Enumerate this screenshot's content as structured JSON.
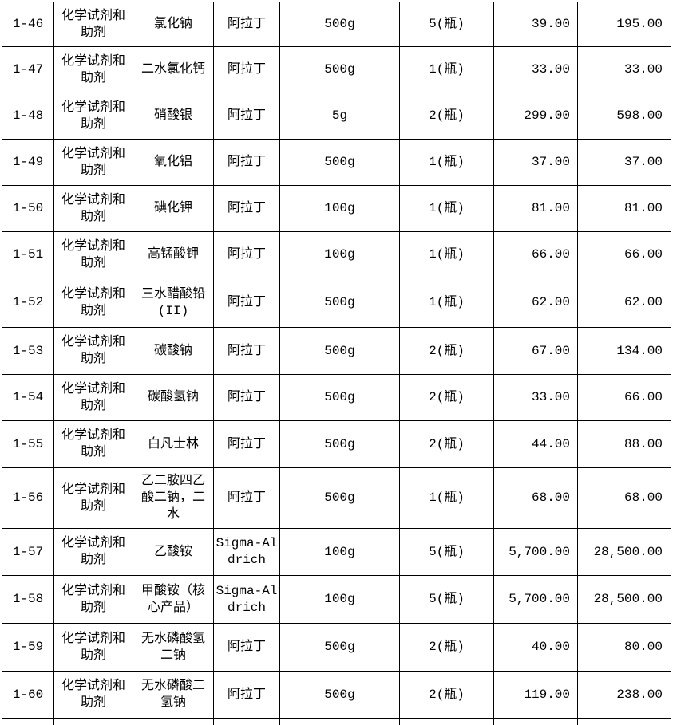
{
  "table": {
    "columns": [
      "id",
      "category",
      "name",
      "brand",
      "spec",
      "quantity",
      "unit_price",
      "total_price"
    ],
    "rows": [
      {
        "id": "1-46",
        "category": "化学试剂和助剂",
        "name": "氯化钠",
        "brand": "阿拉丁",
        "spec": "500g",
        "quantity": "5(瓶)",
        "unit_price": "39.00",
        "total_price": "195.00"
      },
      {
        "id": "1-47",
        "category": "化学试剂和助剂",
        "name": "二水氯化钙",
        "brand": "阿拉丁",
        "spec": "500g",
        "quantity": "1(瓶)",
        "unit_price": "33.00",
        "total_price": "33.00"
      },
      {
        "id": "1-48",
        "category": "化学试剂和助剂",
        "name": "硝酸银",
        "brand": "阿拉丁",
        "spec": "5g",
        "quantity": "2(瓶)",
        "unit_price": "299.00",
        "total_price": "598.00"
      },
      {
        "id": "1-49",
        "category": "化学试剂和助剂",
        "name": "氧化铝",
        "brand": "阿拉丁",
        "spec": "500g",
        "quantity": "1(瓶)",
        "unit_price": "37.00",
        "total_price": "37.00"
      },
      {
        "id": "1-50",
        "category": "化学试剂和助剂",
        "name": "碘化钾",
        "brand": "阿拉丁",
        "spec": "100g",
        "quantity": "1(瓶)",
        "unit_price": "81.00",
        "total_price": "81.00"
      },
      {
        "id": "1-51",
        "category": "化学试剂和助剂",
        "name": "高锰酸钾",
        "brand": "阿拉丁",
        "spec": "100g",
        "quantity": "1(瓶)",
        "unit_price": "66.00",
        "total_price": "66.00"
      },
      {
        "id": "1-52",
        "category": "化学试剂和助剂",
        "name": "三水醋酸铅(II)",
        "brand": "阿拉丁",
        "spec": "500g",
        "quantity": "1(瓶)",
        "unit_price": "62.00",
        "total_price": "62.00"
      },
      {
        "id": "1-53",
        "category": "化学试剂和助剂",
        "name": "碳酸钠",
        "brand": "阿拉丁",
        "spec": "500g",
        "quantity": "2(瓶)",
        "unit_price": "67.00",
        "total_price": "134.00"
      },
      {
        "id": "1-54",
        "category": "化学试剂和助剂",
        "name": "碳酸氢钠",
        "brand": "阿拉丁",
        "spec": "500g",
        "quantity": "2(瓶)",
        "unit_price": "33.00",
        "total_price": "66.00"
      },
      {
        "id": "1-55",
        "category": "化学试剂和助剂",
        "name": "白凡士林",
        "brand": "阿拉丁",
        "spec": "500g",
        "quantity": "2(瓶)",
        "unit_price": "44.00",
        "total_price": "88.00"
      },
      {
        "id": "1-56",
        "category": "化学试剂和助剂",
        "name": "乙二胺四乙酸二钠，二水",
        "brand": "阿拉丁",
        "spec": "500g",
        "quantity": "1(瓶)",
        "unit_price": "68.00",
        "total_price": "68.00"
      },
      {
        "id": "1-57",
        "category": "化学试剂和助剂",
        "name": "乙酸铵",
        "brand": "Sigma-Aldrich",
        "spec": "100g",
        "quantity": "5(瓶)",
        "unit_price": "5,700.00",
        "total_price": "28,500.00"
      },
      {
        "id": "1-58",
        "category": "化学试剂和助剂",
        "name": "甲酸铵（核心产品）",
        "brand": "Sigma-Aldrich",
        "spec": "100g",
        "quantity": "5(瓶)",
        "unit_price": "5,700.00",
        "total_price": "28,500.00"
      },
      {
        "id": "1-59",
        "category": "化学试剂和助剂",
        "name": "无水磷酸氢二钠",
        "brand": "阿拉丁",
        "spec": "500g",
        "quantity": "2(瓶)",
        "unit_price": "40.00",
        "total_price": "80.00"
      },
      {
        "id": "1-60",
        "category": "化学试剂和助剂",
        "name": "无水磷酸二氢钠",
        "brand": "阿拉丁",
        "spec": "500g",
        "quantity": "2(瓶)",
        "unit_price": "119.00",
        "total_price": "238.00"
      }
    ]
  }
}
